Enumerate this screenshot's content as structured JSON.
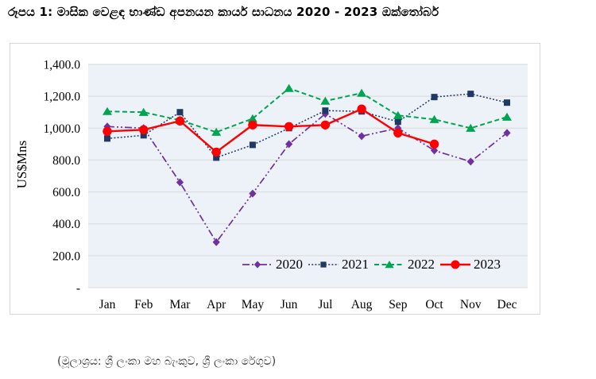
{
  "title": "රූපය 1: මාසික වෙළඳ භාණ්ඩ අපනයන කාර්ය සාධනය 2020 -  2023 ඔක්තෝබර්",
  "caption": "(මූලාශ්‍රය: ශ්‍රී ලංකා මහ බැංකුව, ශ්‍රී ලංකා රේගුව)",
  "chart_data": {
    "type": "line",
    "title": "",
    "xlabel": "",
    "ylabel": "US$Mns",
    "ylim": [
      0,
      1400
    ],
    "grid": true,
    "legend_position": "inside-bottom-right",
    "plot_bg": "#edf2f8",
    "grid_color": "#d9d9d9",
    "y_tick_labels": [
      "1,400.0",
      "1,200.0",
      "1,000.0",
      "800.0",
      "600.0",
      "400.0",
      "200.0",
      "-"
    ],
    "y_tick_values": [
      1400,
      1200,
      1000,
      800,
      600,
      400,
      200,
      0
    ],
    "categories": [
      "Jan",
      "Feb",
      "Mar",
      "Apr",
      "May",
      "Jun",
      "Jul",
      "Aug",
      "Sep",
      "Oct",
      "Nov",
      "Dec"
    ],
    "series": [
      {
        "name": "2020",
        "color": "#7030a0",
        "marker": "diamond",
        "line": "dashdot",
        "values": [
          1010,
          1000,
          660,
          285,
          590,
          900,
          1090,
          950,
          1000,
          860,
          790,
          970
        ]
      },
      {
        "name": "2021",
        "color": "#1f3864",
        "marker": "square",
        "line": "dotted",
        "values": [
          935,
          955,
          1100,
          815,
          895,
          1000,
          1110,
          1105,
          1040,
          1195,
          1215,
          1160
        ]
      },
      {
        "name": "2022",
        "color": "#00a550",
        "marker": "triangle",
        "line": "dashed",
        "values": [
          1105,
          1100,
          1050,
          975,
          1060,
          1250,
          1170,
          1220,
          1080,
          1055,
          1000,
          1070
        ]
      },
      {
        "name": "2023",
        "color": "#ff0000",
        "marker": "circle",
        "line": "solid",
        "values": [
          980,
          990,
          1045,
          850,
          1020,
          1010,
          1020,
          1120,
          970,
          900,
          null,
          null
        ]
      }
    ]
  }
}
